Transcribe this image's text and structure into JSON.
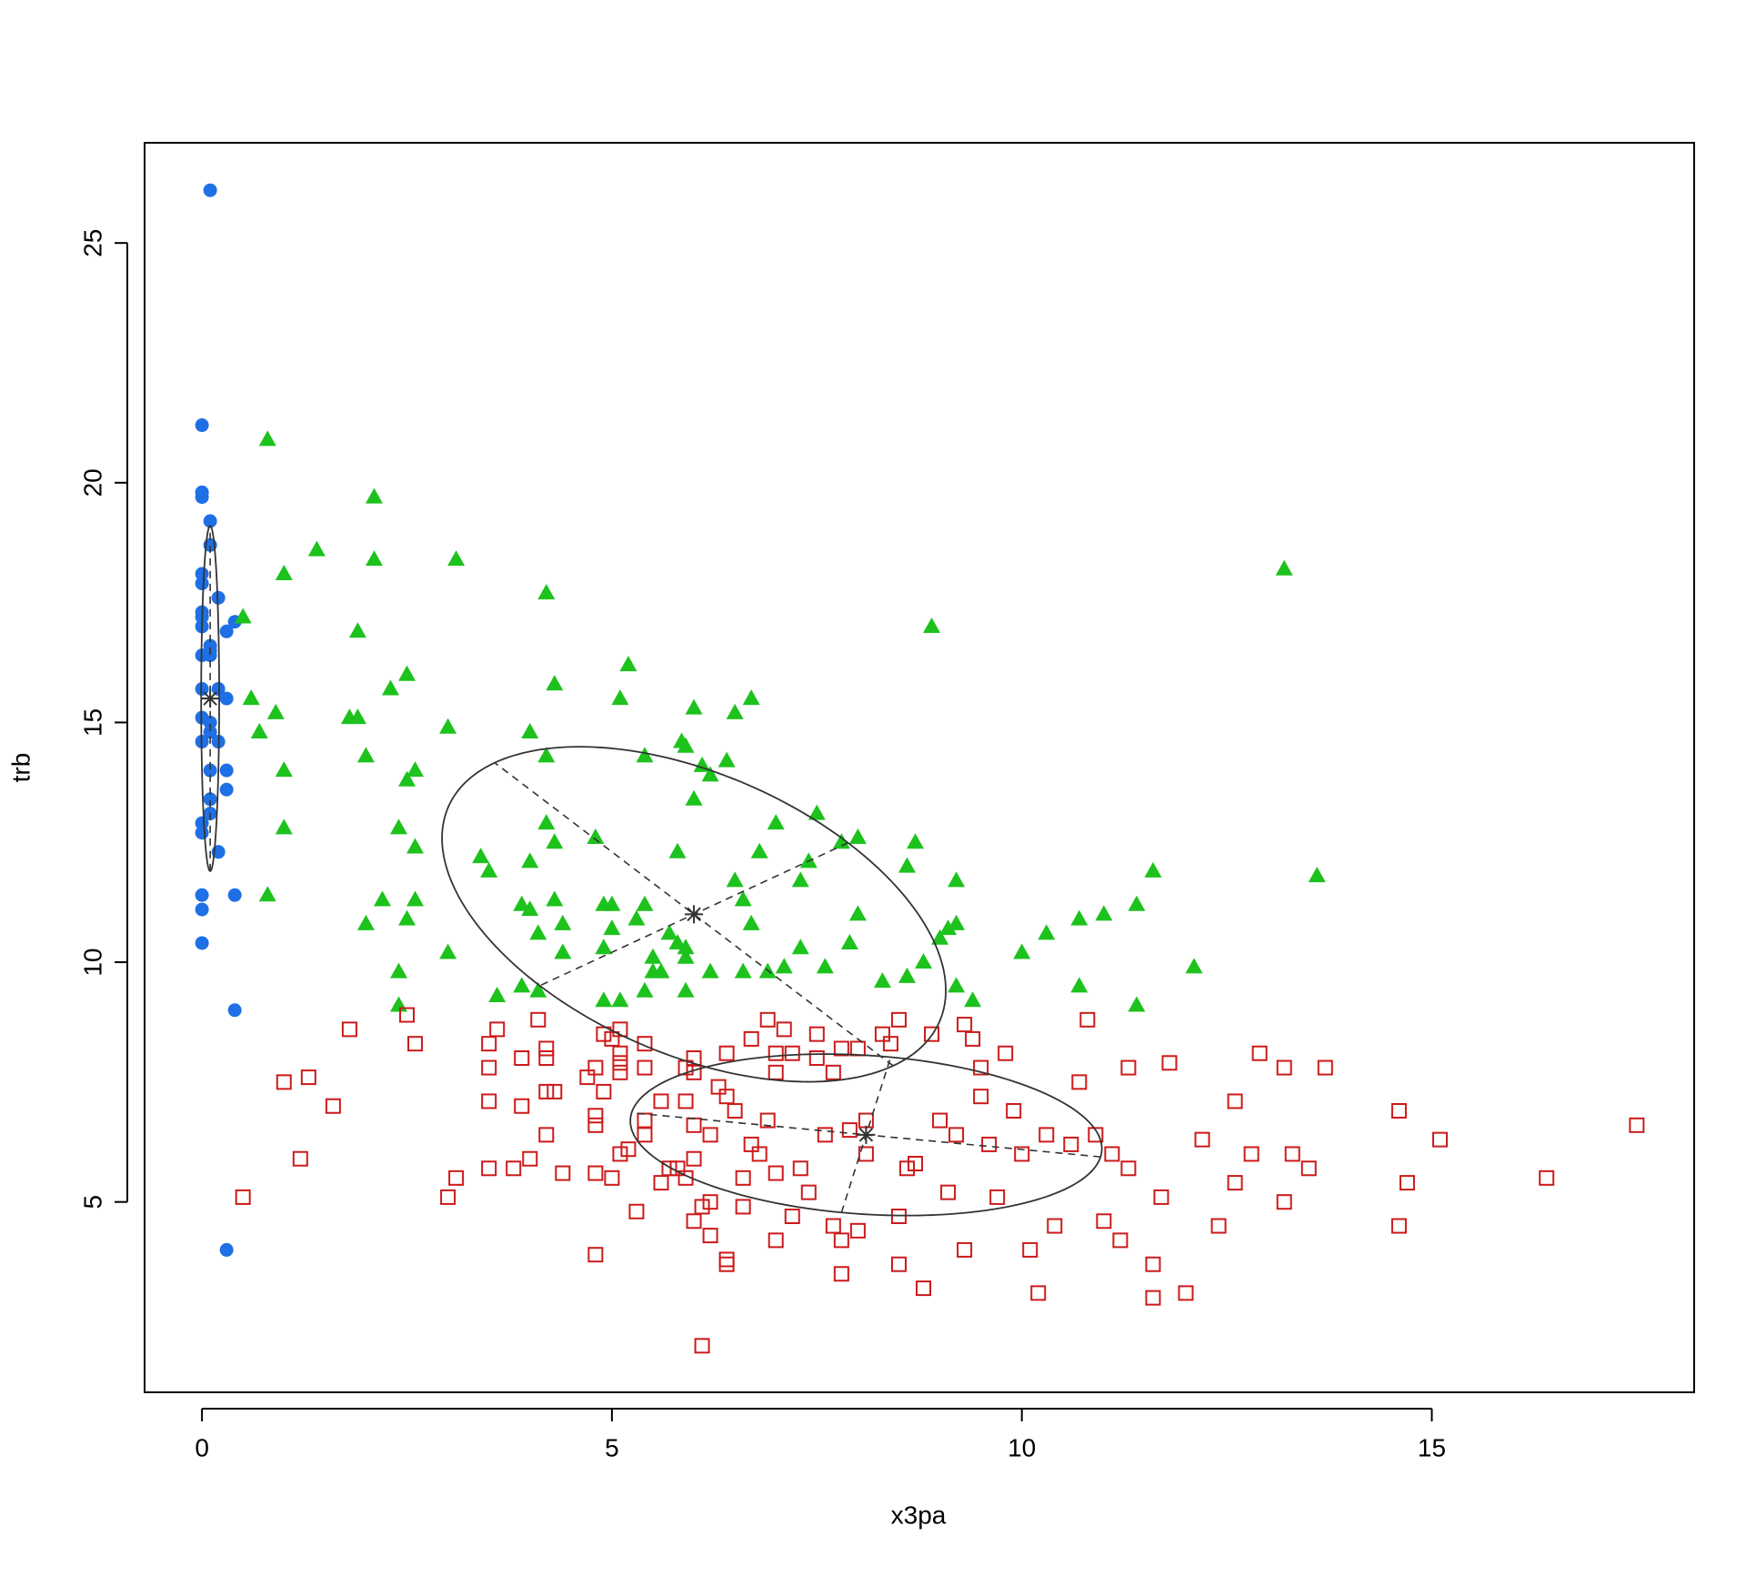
{
  "chart_data": {
    "type": "scatter",
    "x_label": "x3pa",
    "y_label": "trb",
    "xlim": [
      -0.7,
      18.2
    ],
    "ylim": [
      1.03,
      27.09
    ],
    "xticks": [
      0,
      5,
      10,
      15
    ],
    "yticks": [
      5,
      10,
      15,
      20,
      25
    ],
    "series": [
      {
        "color": "#1f6fe5",
        "marker": "circle",
        "filled": true,
        "x": [
          0.1,
          0,
          0,
          0,
          0.1,
          0.1,
          0,
          0,
          0.2,
          0,
          0,
          0.4,
          0,
          0.3,
          0.1,
          0.1,
          0,
          0.1,
          0,
          0.2,
          0.3,
          0.1,
          0,
          0,
          0.2,
          0.1,
          0.1,
          0.3,
          0.3,
          0.1,
          0.1,
          0,
          0,
          0.2,
          0,
          0.4,
          0,
          0,
          0.4,
          0.3
        ],
        "values": [
          26.1,
          21.2,
          19.8,
          19.7,
          19.2,
          18.7,
          18.1,
          17.9,
          17.6,
          17.3,
          17.2,
          17.1,
          17.0,
          16.9,
          16.6,
          16.5,
          16.4,
          16.4,
          15.7,
          15.7,
          15.5,
          15.0,
          15.1,
          14.6,
          14.6,
          14.8,
          14.0,
          14.0,
          13.6,
          13.4,
          13.1,
          12.9,
          12.7,
          12.3,
          11.4,
          11.4,
          11.1,
          10.4,
          9.0,
          4.0
        ]
      },
      {
        "color": "#1dc21d",
        "marker": "triangle",
        "filled": true,
        "x": [
          0.8,
          2.1,
          1.4,
          2.1,
          3.1,
          1.0,
          4.2,
          0.5,
          1.9,
          8.9,
          13.2,
          5.2,
          2.5,
          4.3,
          2.3,
          5.1,
          0.6,
          6.7,
          0.9,
          6.0,
          1.8,
          1.9,
          6.5,
          3.0,
          0.7,
          4.0,
          5.85,
          5.9,
          2.0,
          5.4,
          4.2,
          6.4,
          6.1,
          2.6,
          1.0,
          6.2,
          2.5,
          6.0,
          7.5,
          4.2,
          7.0,
          1.0,
          2.4,
          4.8,
          4.3,
          8.0,
          8.7,
          7.8,
          2.6,
          5.8,
          6.8,
          3.4,
          4.0,
          7.4,
          8.6,
          3.5,
          11.6,
          13.6,
          6.5,
          7.3,
          9.2,
          0.8,
          2.2,
          2.6,
          4.3,
          5.0,
          3.9,
          4.9,
          5.4,
          11.4,
          4.0,
          6.6,
          8.0,
          11.0,
          10.7,
          5.3,
          2.5,
          6.7,
          4.4,
          2.0,
          9.2,
          5.0,
          9.1,
          4.1,
          10.3,
          5.7,
          9.0,
          5.8,
          4.9,
          7.3,
          7.9,
          3.0,
          4.4,
          10.0,
          5.5,
          5.9,
          8.8,
          7.1,
          12.1,
          7.6,
          5.5,
          5.6,
          6.2,
          6.6,
          6.9,
          2.4,
          5.9,
          8.3,
          8.6,
          3.9,
          9.2,
          10.7,
          3.6,
          5.9,
          5.4,
          4.1,
          9.4,
          4.9,
          5.1,
          2.4,
          11.4
        ],
        "values": [
          20.9,
          19.7,
          18.6,
          18.4,
          18.4,
          18.1,
          17.7,
          17.2,
          16.9,
          17.0,
          18.2,
          16.2,
          16.0,
          15.8,
          15.7,
          15.5,
          15.5,
          15.5,
          15.2,
          15.3,
          15.1,
          15.1,
          15.2,
          14.9,
          14.8,
          14.8,
          14.6,
          14.5,
          14.3,
          14.3,
          14.3,
          14.2,
          14.1,
          14.0,
          14.0,
          13.9,
          13.8,
          13.4,
          13.1,
          12.9,
          12.9,
          12.8,
          12.8,
          12.6,
          12.5,
          12.6,
          12.5,
          12.5,
          12.4,
          12.3,
          12.3,
          12.2,
          12.1,
          12.1,
          12.0,
          11.9,
          11.9,
          11.8,
          11.7,
          11.7,
          11.7,
          11.4,
          11.3,
          11.3,
          11.3,
          11.2,
          11.2,
          11.2,
          11.2,
          11.2,
          11.1,
          11.3,
          11.0,
          11.0,
          10.9,
          10.9,
          10.9,
          10.8,
          10.8,
          10.8,
          10.8,
          10.7,
          10.7,
          10.6,
          10.6,
          10.6,
          10.5,
          10.4,
          10.3,
          10.3,
          10.4,
          10.2,
          10.2,
          10.2,
          10.1,
          10.1,
          10.0,
          9.9,
          9.9,
          9.9,
          9.8,
          9.8,
          9.8,
          9.8,
          9.8,
          9.8,
          10.3,
          9.6,
          9.7,
          9.5,
          9.5,
          9.5,
          9.3,
          9.4,
          9.4,
          9.4,
          9.2,
          9.2,
          9.2,
          9.1,
          9.1
        ]
      },
      {
        "color": "#cc1a1a",
        "marker": "square",
        "filled": false,
        "x": [
          1.8,
          2.5,
          2.6,
          1.0,
          1.3,
          1.6,
          1.2,
          0.5,
          3.0,
          3.1,
          3.5,
          3.6,
          3.5,
          3.5,
          3.5,
          3.8,
          3.9,
          3.9,
          4.0,
          4.1,
          4.2,
          4.2,
          4.2,
          4.3,
          4.2,
          4.4,
          4.7,
          4.8,
          4.8,
          4.8,
          4.8,
          4.8,
          4.9,
          5.0,
          4.9,
          5.0,
          5.1,
          5.1,
          5.1,
          5.1,
          5.1,
          5.2,
          5.3,
          5.4,
          5.4,
          5.4,
          5.4,
          5.6,
          5.6,
          5.7,
          5.8,
          5.9,
          6.0,
          6.0,
          5.9,
          6.0,
          6.0,
          5.9,
          6.0,
          6.1,
          6.1,
          6.2,
          6.2,
          6.2,
          6.3,
          6.4,
          6.4,
          6.4,
          6.4,
          6.5,
          6.6,
          6.6,
          6.7,
          6.7,
          6.8,
          6.9,
          6.9,
          7.0,
          7.0,
          7.0,
          7.0,
          7.1,
          7.2,
          7.2,
          7.3,
          7.4,
          7.5,
          7.5,
          7.6,
          7.7,
          7.7,
          7.8,
          7.8,
          7.8,
          7.9,
          8.0,
          8.0,
          8.1,
          8.1,
          8.3,
          8.4,
          8.5,
          8.5,
          8.5,
          8.6,
          8.7,
          8.8,
          8.9,
          9.0,
          9.1,
          9.2,
          9.3,
          9.3,
          9.4,
          9.5,
          9.5,
          9.6,
          9.7,
          9.8,
          9.9,
          10.0,
          10.1,
          10.2,
          10.3,
          10.4,
          10.6,
          10.7,
          10.8,
          10.9,
          11.0,
          11.1,
          11.2,
          11.3,
          11.3,
          11.6,
          11.6,
          11.7,
          11.8,
          12.0,
          12.2,
          12.4,
          12.6,
          12.6,
          12.8,
          12.9,
          13.2,
          13.2,
          13.3,
          13.5,
          13.7,
          14.6,
          14.6,
          14.7,
          15.1,
          16.4,
          17.5
        ],
        "values": [
          8.6,
          8.9,
          8.3,
          7.5,
          7.6,
          7.0,
          5.9,
          5.1,
          5.1,
          5.5,
          8.3,
          8.6,
          7.8,
          7.1,
          5.7,
          5.7,
          8.0,
          7.0,
          5.9,
          8.8,
          8.2,
          8.0,
          7.3,
          7.3,
          6.4,
          5.6,
          7.6,
          7.8,
          6.8,
          6.6,
          5.6,
          3.9,
          8.5,
          8.4,
          7.3,
          5.5,
          8.6,
          8.1,
          7.9,
          7.7,
          6.0,
          6.1,
          4.8,
          8.3,
          7.8,
          6.7,
          6.4,
          7.1,
          5.4,
          5.7,
          5.7,
          7.8,
          8.0,
          7.7,
          7.1,
          6.6,
          5.9,
          5.5,
          4.6,
          4.9,
          2.0,
          4.3,
          6.4,
          5.0,
          7.4,
          3.7,
          3.8,
          8.1,
          7.2,
          6.9,
          5.5,
          4.9,
          8.4,
          6.2,
          6.0,
          8.8,
          6.7,
          8.1,
          7.7,
          5.6,
          4.2,
          8.6,
          8.1,
          4.7,
          5.7,
          5.2,
          8.5,
          8.0,
          6.4,
          7.7,
          4.5,
          8.2,
          3.5,
          4.2,
          6.5,
          8.2,
          4.4,
          6.0,
          6.7,
          8.5,
          8.3,
          8.8,
          3.7,
          4.7,
          5.7,
          5.8,
          3.2,
          8.5,
          6.7,
          5.2,
          6.4,
          8.7,
          4.0,
          8.4,
          7.8,
          7.2,
          6.2,
          5.1,
          8.1,
          6.9,
          6.0,
          4.0,
          3.1,
          6.4,
          4.5,
          6.2,
          7.5,
          8.8,
          6.4,
          4.6,
          6.0,
          4.2,
          5.7,
          7.8,
          3.7,
          3.0,
          5.1,
          7.9,
          3.1,
          6.3,
          4.5,
          7.1,
          5.4,
          6.0,
          8.1,
          7.8,
          5.0,
          6.0,
          5.7,
          7.8,
          6.9,
          4.5,
          5.4,
          6.3,
          5.5,
          6.6
        ]
      }
    ],
    "ellipses": [
      {
        "center": [
          0.1,
          15.5
        ],
        "axes": [
          [
            0,
            3.6
          ],
          [
            0.11,
            0
          ]
        ]
      },
      {
        "center": [
          6.0,
          11.0
        ],
        "axes": [
          [
            -2.43,
            3.16
          ],
          [
            -1.88,
            -1.49
          ]
        ]
      },
      {
        "center": [
          8.1,
          6.4
        ],
        "axes": [
          [
            -2.86,
            0.46
          ],
          [
            0.3,
            1.62
          ]
        ]
      }
    ]
  }
}
